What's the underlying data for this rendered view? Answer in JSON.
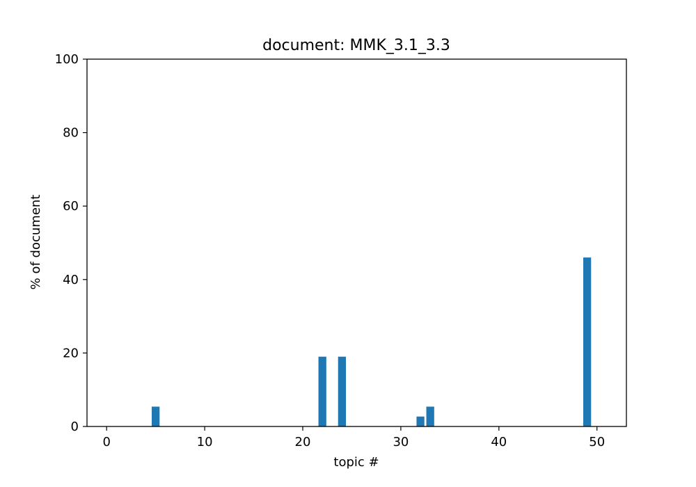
{
  "chart_data": {
    "type": "bar",
    "title": "document: MMK_3.1_3.3",
    "xlabel": "topic #",
    "ylabel": "% of document",
    "xlim": [
      -2,
      53
    ],
    "ylim": [
      0,
      100
    ],
    "xticks": [
      0,
      10,
      20,
      30,
      40,
      50
    ],
    "yticks": [
      0,
      20,
      40,
      60,
      80,
      100
    ],
    "grid": false,
    "bar_color": "#1f77b4",
    "x": [
      0,
      1,
      2,
      3,
      4,
      5,
      6,
      7,
      8,
      9,
      10,
      11,
      12,
      13,
      14,
      15,
      16,
      17,
      18,
      19,
      20,
      21,
      22,
      23,
      24,
      25,
      26,
      27,
      28,
      29,
      30,
      31,
      32,
      33,
      34,
      35,
      36,
      37,
      38,
      39,
      40,
      41,
      42,
      43,
      44,
      45,
      46,
      47,
      48,
      49,
      50
    ],
    "values": [
      0,
      0,
      0,
      0,
      0,
      5.4,
      0,
      0,
      0,
      0,
      0,
      0,
      0,
      0,
      0,
      0,
      0,
      0,
      0,
      0,
      0,
      0,
      19.0,
      0,
      19.0,
      0,
      0,
      0,
      0,
      0,
      0,
      0,
      2.7,
      5.4,
      0,
      0,
      0,
      0,
      0,
      0,
      0,
      0,
      0,
      0,
      0,
      0,
      0,
      0,
      0,
      46.0,
      0
    ]
  }
}
